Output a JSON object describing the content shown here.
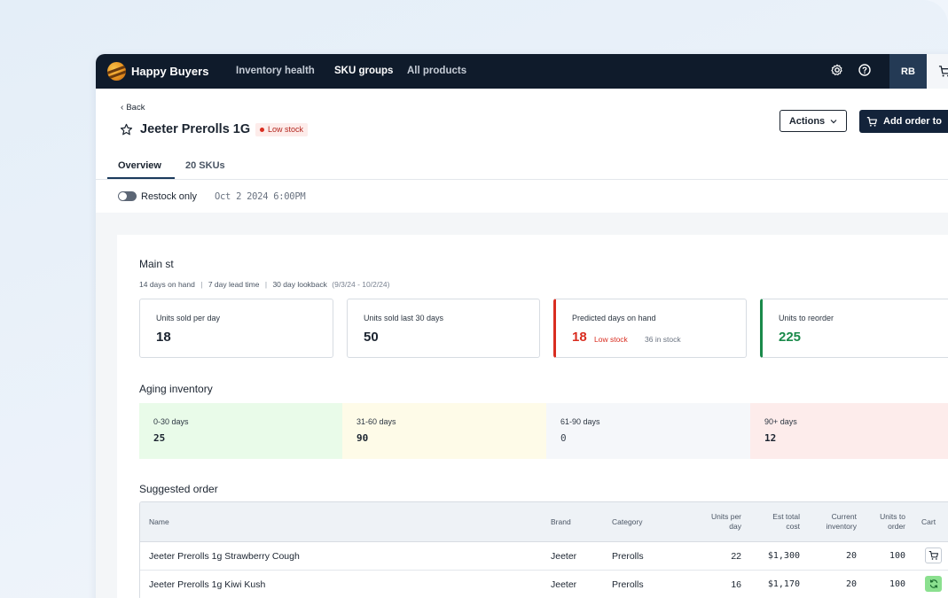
{
  "brand": "Happy Buyers",
  "nav": {
    "items": [
      "Inventory health",
      "SKU groups",
      "All products"
    ],
    "active": "SKU groups",
    "avatar": "RB"
  },
  "header": {
    "back": "Back",
    "title": "Jeeter Prerolls 1G",
    "status": "Low stock",
    "actions_label": "Actions",
    "add_order_label": "Add order to"
  },
  "tabs": [
    "Overview",
    "20 SKUs"
  ],
  "filter": {
    "toggle_label": "Restock only",
    "timestamp": "Oct 2 2024 6:00PM"
  },
  "location": {
    "name": "Main st",
    "meta": [
      "14 days on hand",
      "7 day lead time",
      "30 day lookback"
    ],
    "range": "(9/3/24 - 10/2/24)"
  },
  "metrics": [
    {
      "label": "Units sold per day",
      "value": "18"
    },
    {
      "label": "Units sold last 30 days",
      "value": "50"
    },
    {
      "label": "Predicted days on hand",
      "value": "18",
      "status": "Low stock",
      "note": "36 in stock"
    },
    {
      "label": "Units to reorder",
      "value": "225"
    }
  ],
  "aging": {
    "title": "Aging inventory",
    "buckets": [
      {
        "label": "0-30 days",
        "value": "25",
        "color": "#e9fbe9"
      },
      {
        "label": "31-60 days",
        "value": "90",
        "color": "#fefbe8"
      },
      {
        "label": "61-90 days",
        "value": "0",
        "color": "#f5f7fa"
      },
      {
        "label": "90+ days",
        "value": "12",
        "color": "#fdeceb"
      }
    ]
  },
  "suggested": {
    "title": "Suggested order",
    "columns": {
      "name": "Name",
      "brand": "Brand",
      "category": "Category",
      "units_per_day": [
        "Units per",
        "day"
      ],
      "est_cost": [
        "Est total",
        "cost"
      ],
      "current_inventory": [
        "Current",
        "inventory"
      ],
      "units_to_order": [
        "Units to",
        "order"
      ],
      "cart": "Cart"
    },
    "rows": [
      {
        "name": "Jeeter Prerolls 1g Strawberry Cough",
        "brand": "Jeeter",
        "category": "Prerolls",
        "units_per_day": "22",
        "est_cost": "$1,300",
        "current_inventory": "20",
        "units_to_order": "100",
        "cart_state": "cart-icon"
      },
      {
        "name": "Jeeter Prerolls 1g Kiwi Kush",
        "brand": "Jeeter",
        "category": "Prerolls",
        "units_per_day": "16",
        "est_cost": "$1,170",
        "current_inventory": "20",
        "units_to_order": "100",
        "cart_state": "refresh-icon"
      }
    ]
  },
  "colors": {
    "nav_bg": "#0f1b2b",
    "low_stock": "#d92d20",
    "reorder_green": "#1a8a4a"
  }
}
